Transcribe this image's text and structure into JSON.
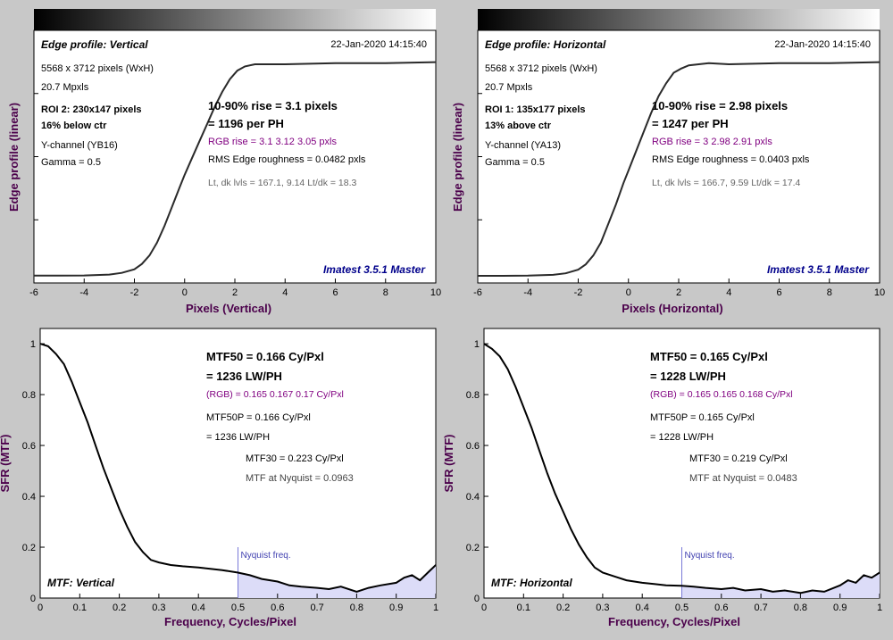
{
  "chart_data": [
    {
      "type": "line",
      "panel_label": "Edge profile: Vertical",
      "date": "22-Jan-2020 14:15:40",
      "xlabel": "Pixels (Vertical)",
      "ylabel": "Edge profile (linear)",
      "xlim": [
        -6,
        10
      ],
      "xticks": [
        "-6",
        "-4",
        "-2",
        "0",
        "2",
        "4",
        "6",
        "8",
        "10"
      ],
      "info": {
        "size": "5568 x 3712 pixels (WxH)",
        "mpxls": "20.7 Mpxls",
        "roi": "ROI 2:  230x147 pixels",
        "pos": "16% below ctr",
        "channel": "Y-channel  (YB16)",
        "gamma": "Gamma = 0.5",
        "rise": "10-90% rise = 3.1 pixels",
        "per_ph": "= 1196 per PH",
        "rgb_rise": "RGB rise = 3.1  3.12  3.05 pxls",
        "rms": "RMS Edge roughness = 0.0482 pxls",
        "lvls": "Lt, dk lvls = 167.1, 9.14   Lt/dk = 18.3",
        "watermark": "Imatest 3.5.1 Master"
      },
      "x": [
        -6,
        -5,
        -4,
        -3,
        -2.5,
        -2,
        -1.7,
        -1.4,
        -1.1,
        -0.8,
        -0.5,
        -0.2,
        0,
        0.3,
        0.6,
        0.9,
        1.2,
        1.5,
        1.8,
        2.1,
        2.4,
        2.8,
        3.2,
        4,
        6,
        8,
        10
      ],
      "y": [
        0.005,
        0.005,
        0.006,
        0.01,
        0.018,
        0.035,
        0.06,
        0.1,
        0.16,
        0.24,
        0.33,
        0.42,
        0.48,
        0.56,
        0.64,
        0.72,
        0.8,
        0.87,
        0.93,
        0.97,
        0.99,
        1.0,
        1.0,
        1.0,
        1.005,
        1.005,
        1.01
      ]
    },
    {
      "type": "line",
      "panel_label": "Edge profile: Horizontal",
      "date": "22-Jan-2020 14:15:40",
      "xlabel": "Pixels (Horizontal)",
      "ylabel": "Edge profile (linear)",
      "xlim": [
        -6,
        10
      ],
      "xticks": [
        "-6",
        "-4",
        "-2",
        "0",
        "2",
        "4",
        "6",
        "8",
        "10"
      ],
      "info": {
        "size": "5568 x 3712 pixels (WxH)",
        "mpxls": "20.7 Mpxls",
        "roi": "ROI 1:  135x177 pixels",
        "pos": "13% above ctr",
        "channel": "Y-channel  (YA13)",
        "gamma": "Gamma = 0.5",
        "rise": "10-90% rise = 2.98 pixels",
        "per_ph": "= 1247 per PH",
        "rgb_rise": "RGB rise = 3  2.98  2.91 pxls",
        "rms": "RMS Edge roughness = 0.0403 pxls",
        "lvls": "Lt, dk lvls = 166.7, 9.59   Lt/dk = 17.4",
        "watermark": "Imatest 3.5.1 Master"
      },
      "x": [
        -6,
        -5,
        -4,
        -3,
        -2.5,
        -2,
        -1.7,
        -1.4,
        -1.1,
        -0.8,
        -0.5,
        -0.2,
        0,
        0.3,
        0.6,
        0.9,
        1.2,
        1.5,
        1.8,
        2.1,
        2.4,
        2.8,
        3.2,
        4,
        6,
        8,
        10
      ],
      "y": [
        0.004,
        0.004,
        0.005,
        0.009,
        0.016,
        0.033,
        0.058,
        0.1,
        0.16,
        0.25,
        0.34,
        0.44,
        0.5,
        0.59,
        0.68,
        0.77,
        0.85,
        0.91,
        0.96,
        0.98,
        0.995,
        1.0,
        1.005,
        1.0,
        1.005,
        1.005,
        1.01
      ]
    },
    {
      "type": "line",
      "panel_label": "MTF: Vertical",
      "xlabel": "Frequency, Cycles/Pixel",
      "ylabel": "SFR (MTF)",
      "xlim": [
        0,
        1
      ],
      "ylim": [
        0,
        1.06
      ],
      "xticks": [
        "0",
        "0.1",
        "0.2",
        "0.3",
        "0.4",
        "0.5",
        "0.6",
        "0.7",
        "0.8",
        "0.9",
        "1"
      ],
      "yticks": [
        "0",
        "0.2",
        "0.4",
        "0.6",
        "0.8",
        "1"
      ],
      "nyquist": 0.5,
      "nyquist_label": "Nyquist freq.",
      "info": {
        "mtf50": "MTF50 = 0.166 Cy/Pxl",
        "lwph": "= 1236 LW/PH",
        "rgb": "(RGB) = 0.165  0.167  0.17 Cy/Pxl",
        "mtf50p": "MTF50P = 0.166 Cy/Pxl",
        "mtf50p_lwph": "= 1236 LW/PH",
        "mtf30": "MTF30 = 0.223 Cy/Pxl",
        "nyq": "MTF at Nyquist = 0.0963"
      },
      "x": [
        0,
        0.02,
        0.04,
        0.06,
        0.08,
        0.1,
        0.12,
        0.14,
        0.16,
        0.18,
        0.2,
        0.22,
        0.24,
        0.26,
        0.28,
        0.3,
        0.33,
        0.36,
        0.4,
        0.43,
        0.46,
        0.5,
        0.53,
        0.56,
        0.6,
        0.63,
        0.66,
        0.7,
        0.73,
        0.76,
        0.8,
        0.83,
        0.86,
        0.9,
        0.92,
        0.94,
        0.96,
        0.98,
        1.0
      ],
      "y": [
        1.0,
        0.99,
        0.96,
        0.92,
        0.85,
        0.77,
        0.69,
        0.6,
        0.51,
        0.43,
        0.35,
        0.28,
        0.22,
        0.18,
        0.15,
        0.14,
        0.13,
        0.125,
        0.12,
        0.115,
        0.11,
        0.1,
        0.09,
        0.075,
        0.065,
        0.05,
        0.045,
        0.04,
        0.035,
        0.045,
        0.025,
        0.04,
        0.05,
        0.06,
        0.08,
        0.09,
        0.07,
        0.1,
        0.13
      ]
    },
    {
      "type": "line",
      "panel_label": "MTF: Horizontal",
      "xlabel": "Frequency, Cycles/Pixel",
      "ylabel": "SFR (MTF)",
      "xlim": [
        0,
        1
      ],
      "ylim": [
        0,
        1.06
      ],
      "xticks": [
        "0",
        "0.1",
        "0.2",
        "0.3",
        "0.4",
        "0.5",
        "0.6",
        "0.7",
        "0.8",
        "0.9",
        "1"
      ],
      "yticks": [
        "0",
        "0.2",
        "0.4",
        "0.6",
        "0.8",
        "1"
      ],
      "nyquist": 0.5,
      "nyquist_label": "Nyquist freq.",
      "info": {
        "mtf50": "MTF50 = 0.165 Cy/Pxl",
        "lwph": "= 1228 LW/PH",
        "rgb": "(RGB) = 0.165  0.165  0.168 Cy/Pxl",
        "mtf50p": "MTF50P = 0.165 Cy/Pxl",
        "mtf50p_lwph": "= 1228 LW/PH",
        "mtf30": "MTF30 = 0.219 Cy/Pxl",
        "nyq": "MTF at Nyquist = 0.0483"
      },
      "x": [
        0,
        0.02,
        0.04,
        0.06,
        0.08,
        0.1,
        0.12,
        0.14,
        0.16,
        0.18,
        0.2,
        0.22,
        0.24,
        0.26,
        0.28,
        0.3,
        0.33,
        0.36,
        0.4,
        0.43,
        0.46,
        0.5,
        0.53,
        0.56,
        0.6,
        0.63,
        0.66,
        0.7,
        0.73,
        0.76,
        0.8,
        0.83,
        0.86,
        0.9,
        0.92,
        0.94,
        0.96,
        0.98,
        1.0
      ],
      "y": [
        1.0,
        0.98,
        0.95,
        0.9,
        0.83,
        0.75,
        0.67,
        0.58,
        0.49,
        0.41,
        0.34,
        0.27,
        0.21,
        0.16,
        0.12,
        0.1,
        0.085,
        0.07,
        0.06,
        0.055,
        0.05,
        0.048,
        0.045,
        0.04,
        0.035,
        0.04,
        0.03,
        0.035,
        0.025,
        0.03,
        0.02,
        0.03,
        0.025,
        0.05,
        0.07,
        0.06,
        0.09,
        0.08,
        0.1
      ]
    }
  ],
  "colors": {
    "curve": "#2a2a2a",
    "purple": "#800080",
    "watermark": "#00008b",
    "label": "#4b004b",
    "nyquist_fill": "#dcdcf8",
    "nyquist_line": "#7a7ad8"
  }
}
